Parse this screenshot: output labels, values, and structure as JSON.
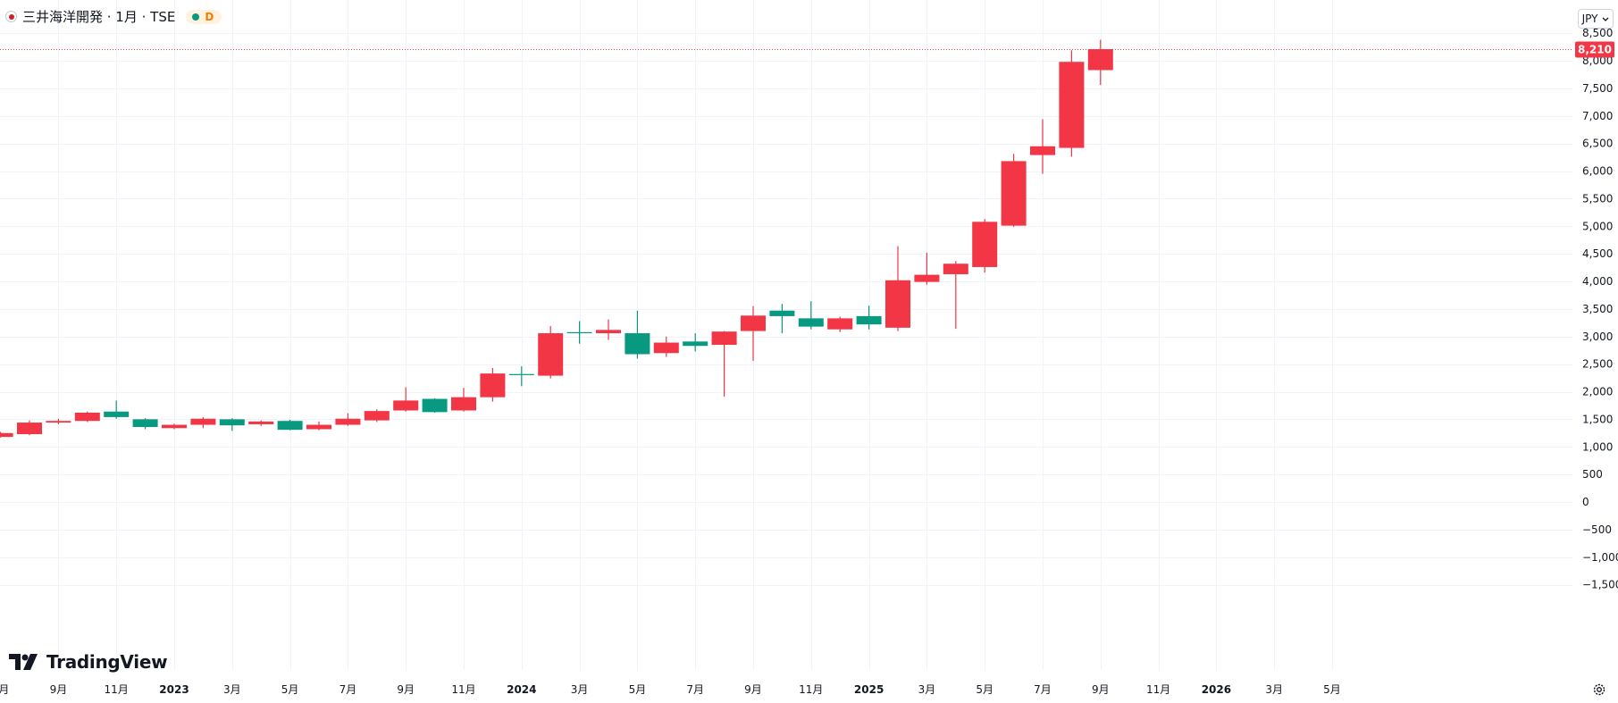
{
  "header": {
    "symbol_title": "三井海洋開発 · 1月 · TSE",
    "status_letter": "D"
  },
  "currency": {
    "label": "JPY"
  },
  "logo": {
    "text": "TradingView"
  },
  "last_price": {
    "value": 8210,
    "label": "8,210"
  },
  "colors": {
    "up": "#f23645",
    "down": "#089981",
    "grid": "#f0f3fa",
    "price_line": "#f23645"
  },
  "chart_data": {
    "type": "candlestick",
    "ylim": [
      -1700,
      8700
    ],
    "y_ticks": [
      -1500,
      -1000,
      -500,
      0,
      500,
      1000,
      1500,
      2000,
      2500,
      3000,
      3500,
      4000,
      4500,
      5000,
      5500,
      6000,
      6500,
      7000,
      7500,
      8000,
      8500
    ],
    "y_tick_labels": [
      "−1,500",
      "−1,000",
      "−500",
      "0",
      "500",
      "1,000",
      "1,500",
      "2,000",
      "2,500",
      "3,000",
      "3,500",
      "4,000",
      "4,500",
      "5,000",
      "5,500",
      "6,000",
      "6,500",
      "7,000",
      "7,500",
      "8,000",
      "8,500"
    ],
    "x_ticks": [
      {
        "label": "9月",
        "month": "2022-09"
      },
      {
        "label": "11月",
        "month": "2022-11"
      },
      {
        "label": "2023",
        "month": "2023-01",
        "bold": true
      },
      {
        "label": "3月",
        "month": "2023-03"
      },
      {
        "label": "5月",
        "month": "2023-05"
      },
      {
        "label": "7月",
        "month": "2023-07"
      },
      {
        "label": "9月",
        "month": "2023-09"
      },
      {
        "label": "11月",
        "month": "2023-11"
      },
      {
        "label": "2024",
        "month": "2024-01",
        "bold": true
      },
      {
        "label": "3月",
        "month": "2024-03"
      },
      {
        "label": "5月",
        "month": "2024-05"
      },
      {
        "label": "7月",
        "month": "2024-07"
      },
      {
        "label": "9月",
        "month": "2024-09"
      },
      {
        "label": "11月",
        "month": "2024-11"
      },
      {
        "label": "2025",
        "month": "2025-01",
        "bold": true
      },
      {
        "label": "3月",
        "month": "2025-03"
      },
      {
        "label": "5月",
        "month": "2025-05"
      },
      {
        "label": "7月",
        "month": "2025-07"
      },
      {
        "label": "9月",
        "month": "2025-09"
      },
      {
        "label": "11月",
        "month": "2025-11"
      },
      {
        "label": "2026",
        "month": "2026-01",
        "bold": true
      },
      {
        "label": "3月",
        "month": "2026-03"
      },
      {
        "label": "5月",
        "month": "2026-05"
      }
    ],
    "candles": [
      {
        "month": "2022-07",
        "open": 1180,
        "high": 1270,
        "low": 1170,
        "close": 1250
      },
      {
        "month": "2022-08",
        "open": 1230,
        "high": 1480,
        "low": 1210,
        "close": 1440
      },
      {
        "month": "2022-09",
        "open": 1440,
        "high": 1510,
        "low": 1410,
        "close": 1470
      },
      {
        "month": "2022-10",
        "open": 1470,
        "high": 1640,
        "low": 1450,
        "close": 1620
      },
      {
        "month": "2022-11",
        "open": 1640,
        "high": 1840,
        "low": 1510,
        "close": 1540
      },
      {
        "month": "2022-12",
        "open": 1500,
        "high": 1520,
        "low": 1320,
        "close": 1360
      },
      {
        "month": "2023-01",
        "open": 1340,
        "high": 1420,
        "low": 1320,
        "close": 1400
      },
      {
        "month": "2023-02",
        "open": 1400,
        "high": 1540,
        "low": 1340,
        "close": 1510
      },
      {
        "month": "2023-03",
        "open": 1500,
        "high": 1520,
        "low": 1290,
        "close": 1390
      },
      {
        "month": "2023-04",
        "open": 1410,
        "high": 1480,
        "low": 1380,
        "close": 1460
      },
      {
        "month": "2023-05",
        "open": 1470,
        "high": 1490,
        "low": 1300,
        "close": 1310
      },
      {
        "month": "2023-06",
        "open": 1320,
        "high": 1460,
        "low": 1300,
        "close": 1400
      },
      {
        "month": "2023-07",
        "open": 1400,
        "high": 1610,
        "low": 1380,
        "close": 1510
      },
      {
        "month": "2023-08",
        "open": 1480,
        "high": 1680,
        "low": 1450,
        "close": 1650
      },
      {
        "month": "2023-09",
        "open": 1660,
        "high": 2080,
        "low": 1640,
        "close": 1840
      },
      {
        "month": "2023-10",
        "open": 1870,
        "high": 1880,
        "low": 1620,
        "close": 1630
      },
      {
        "month": "2023-11",
        "open": 1660,
        "high": 2070,
        "low": 1640,
        "close": 1900
      },
      {
        "month": "2023-12",
        "open": 1900,
        "high": 2430,
        "low": 1820,
        "close": 2330
      },
      {
        "month": "2024-01",
        "open": 2320,
        "high": 2460,
        "low": 2100,
        "close": 2310
      },
      {
        "month": "2024-02",
        "open": 2290,
        "high": 3190,
        "low": 2240,
        "close": 3060
      },
      {
        "month": "2024-03",
        "open": 3080,
        "high": 3280,
        "low": 2870,
        "close": 3070
      },
      {
        "month": "2024-04",
        "open": 3060,
        "high": 3310,
        "low": 2940,
        "close": 3120
      },
      {
        "month": "2024-05",
        "open": 3060,
        "high": 3470,
        "low": 2600,
        "close": 2680
      },
      {
        "month": "2024-06",
        "open": 2700,
        "high": 3000,
        "low": 2630,
        "close": 2890
      },
      {
        "month": "2024-07",
        "open": 2910,
        "high": 3060,
        "low": 2730,
        "close": 2830
      },
      {
        "month": "2024-08",
        "open": 2850,
        "high": 3100,
        "low": 1910,
        "close": 3090
      },
      {
        "month": "2024-09",
        "open": 3100,
        "high": 3550,
        "low": 2560,
        "close": 3380
      },
      {
        "month": "2024-10",
        "open": 3470,
        "high": 3590,
        "low": 3060,
        "close": 3370
      },
      {
        "month": "2024-11",
        "open": 3330,
        "high": 3640,
        "low": 3130,
        "close": 3180
      },
      {
        "month": "2024-12",
        "open": 3130,
        "high": 3360,
        "low": 3080,
        "close": 3330
      },
      {
        "month": "2025-01",
        "open": 3370,
        "high": 3560,
        "low": 3130,
        "close": 3220
      },
      {
        "month": "2025-02",
        "open": 3160,
        "high": 4640,
        "low": 3100,
        "close": 4020
      },
      {
        "month": "2025-03",
        "open": 3990,
        "high": 4520,
        "low": 3940,
        "close": 4120
      },
      {
        "month": "2025-04",
        "open": 4130,
        "high": 4370,
        "low": 3140,
        "close": 4320
      },
      {
        "month": "2025-05",
        "open": 4260,
        "high": 5130,
        "low": 4160,
        "close": 5080
      },
      {
        "month": "2025-06",
        "open": 5010,
        "high": 6310,
        "low": 4990,
        "close": 6180
      },
      {
        "month": "2025-07",
        "open": 6290,
        "high": 6940,
        "low": 5950,
        "close": 6450
      },
      {
        "month": "2025-08",
        "open": 6420,
        "high": 8190,
        "low": 6260,
        "close": 7980
      },
      {
        "month": "2025-09",
        "open": 7830,
        "high": 8380,
        "low": 7560,
        "close": 8210
      }
    ]
  }
}
